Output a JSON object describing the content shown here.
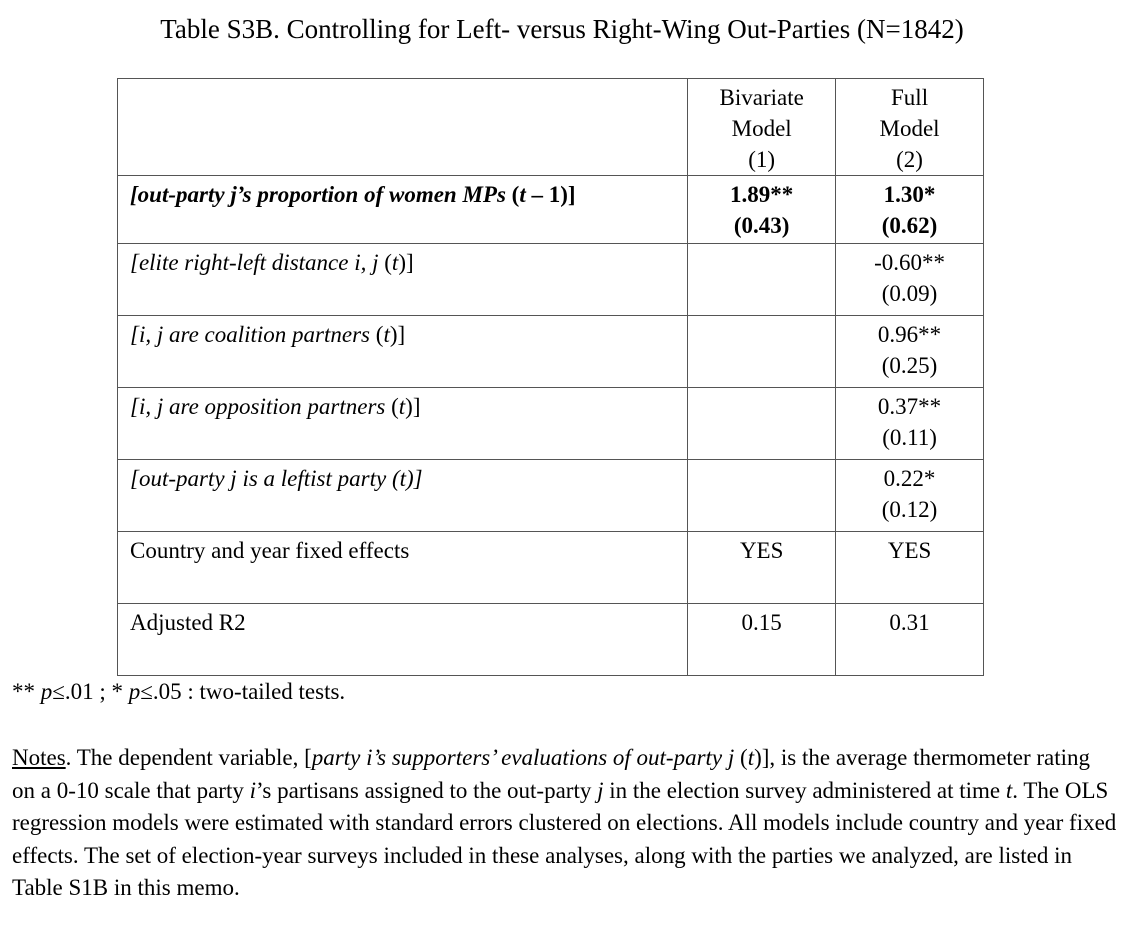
{
  "title": "Table S3B. Controlling for Left- versus Right-Wing Out-Parties (N=1842)",
  "columns": [
    {
      "line1": "Bivariate",
      "line2": "Model",
      "line3": "(1)"
    },
    {
      "line1": "Full",
      "line2": "Model",
      "line3": "(2)"
    }
  ],
  "rows": [
    {
      "label_a": "[out-party ",
      "label_b": "j",
      "label_c": "’s proportion of women MPs",
      "label_d": " (",
      "label_e": "t",
      "label_f": " – 1)]",
      "m1_coef": "1.89**",
      "m1_se": "(0.43)",
      "m2_coef": "1.30*",
      "m2_se": "(0.62)"
    },
    {
      "label_a": "[elite right-left distance i, j ",
      "label_b": "(",
      "label_c": "t",
      "label_d": ")]",
      "m1_coef": "",
      "m1_se": "",
      "m2_coef": "-0.60**",
      "m2_se": "(0.09)"
    },
    {
      "label_a": "[i, j are coalition partners ",
      "label_b": "(",
      "label_c": "t",
      "label_d": ")]",
      "m1_coef": "",
      "m1_se": "",
      "m2_coef": "0.96**",
      "m2_se": "(0.25)"
    },
    {
      "label_a": "[i, j are opposition partners ",
      "label_b": "(",
      "label_c": "t",
      "label_d": ")]",
      "m1_coef": "",
      "m1_se": "",
      "m2_coef": "0.37**",
      "m2_se": "(0.11)"
    },
    {
      "label_a": "[out-party j is a leftist party (t)]",
      "m1_coef": "",
      "m1_se": "",
      "m2_coef": "0.22*",
      "m2_se": "(0.12)"
    },
    {
      "label_a": "Country and year fixed effects",
      "m1_coef": "YES",
      "m2_coef": "YES"
    },
    {
      "label_a": "Adjusted R2",
      "m1_coef": "0.15",
      "m2_coef": "0.31"
    }
  ],
  "footnote": {
    "s1": "** ",
    "p1": "p",
    "s2": "≤.01 ; * ",
    "p2": "p",
    "s3": "≤.05 : two-tailed tests."
  },
  "notes": {
    "heading": "Notes",
    "t1": ". The dependent variable, [",
    "t2": "party i’s supporters’ evaluations of out-party j",
    "t3": " (",
    "t4": "t",
    "t5": ")], is the average thermometer rating on a 0-10 scale that party ",
    "t6": "i",
    "t7": "’s partisans assigned to the out-party ",
    "t8": "j",
    "t9": " in the election survey administered at time ",
    "t10": "t",
    "t11": ".  The OLS regression models were estimated with standard errors clustered on elections. All models include country and year fixed effects.  The set of election-year surveys included in these analyses, along with the parties we analyzed, are listed in Table S1B in this memo."
  }
}
